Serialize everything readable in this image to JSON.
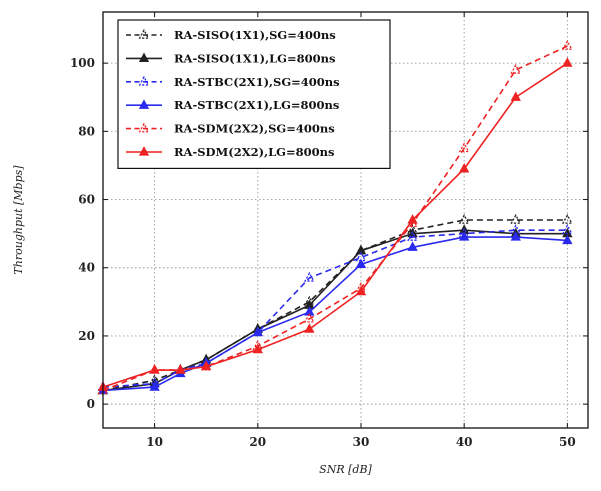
{
  "chart_data": {
    "type": "line",
    "title": "",
    "xlabel": "SNR [dB]",
    "ylabel": "Throughput [Mbps]",
    "xlim": [
      5,
      52
    ],
    "ylim": [
      -7,
      115
    ],
    "xticks": [
      10,
      20,
      30,
      40,
      50
    ],
    "yticks": [
      0,
      20,
      40,
      60,
      80,
      100
    ],
    "grid": true,
    "legend_position": "top-left",
    "x": [
      5,
      10,
      12.5,
      15,
      20,
      25,
      30,
      35,
      40,
      45,
      50
    ],
    "series": [
      {
        "name": "RA-SISO(1X1),SG=400ns",
        "color": "#222222",
        "dash": true,
        "marker": "triangle-open",
        "values": [
          4,
          7,
          10,
          13,
          22,
          30,
          45,
          51,
          54,
          54,
          54
        ]
      },
      {
        "name": "RA-SISO(1X1),LG=800ns",
        "color": "#222222",
        "dash": false,
        "marker": "triangle",
        "values": [
          4,
          6,
          10,
          13,
          22,
          29,
          45,
          50,
          51,
          50,
          50
        ]
      },
      {
        "name": "RA-STBC(2X1),SG=400ns",
        "color": "#2a2aee",
        "dash": true,
        "marker": "triangle-open",
        "values": [
          5,
          6,
          10,
          12,
          21,
          37,
          43,
          49,
          50,
          51,
          51
        ]
      },
      {
        "name": "RA-STBC(2X1),LG=800ns",
        "color": "#2a2aee",
        "dash": false,
        "marker": "triangle",
        "values": [
          4,
          5,
          9,
          12,
          21,
          27,
          41,
          46,
          49,
          49,
          48
        ]
      },
      {
        "name": "RA-SDM(2X2),SG=400ns",
        "color": "#ee2222",
        "dash": true,
        "marker": "triangle-open",
        "values": [
          4,
          10,
          10,
          11,
          17,
          25,
          34,
          53,
          75,
          98,
          105
        ]
      },
      {
        "name": "RA-SDM(2X2),LG=800ns",
        "color": "#ee2222",
        "dash": false,
        "marker": "triangle",
        "values": [
          5,
          10,
          10,
          11,
          16,
          22,
          33,
          54,
          69,
          90,
          100
        ]
      }
    ]
  }
}
